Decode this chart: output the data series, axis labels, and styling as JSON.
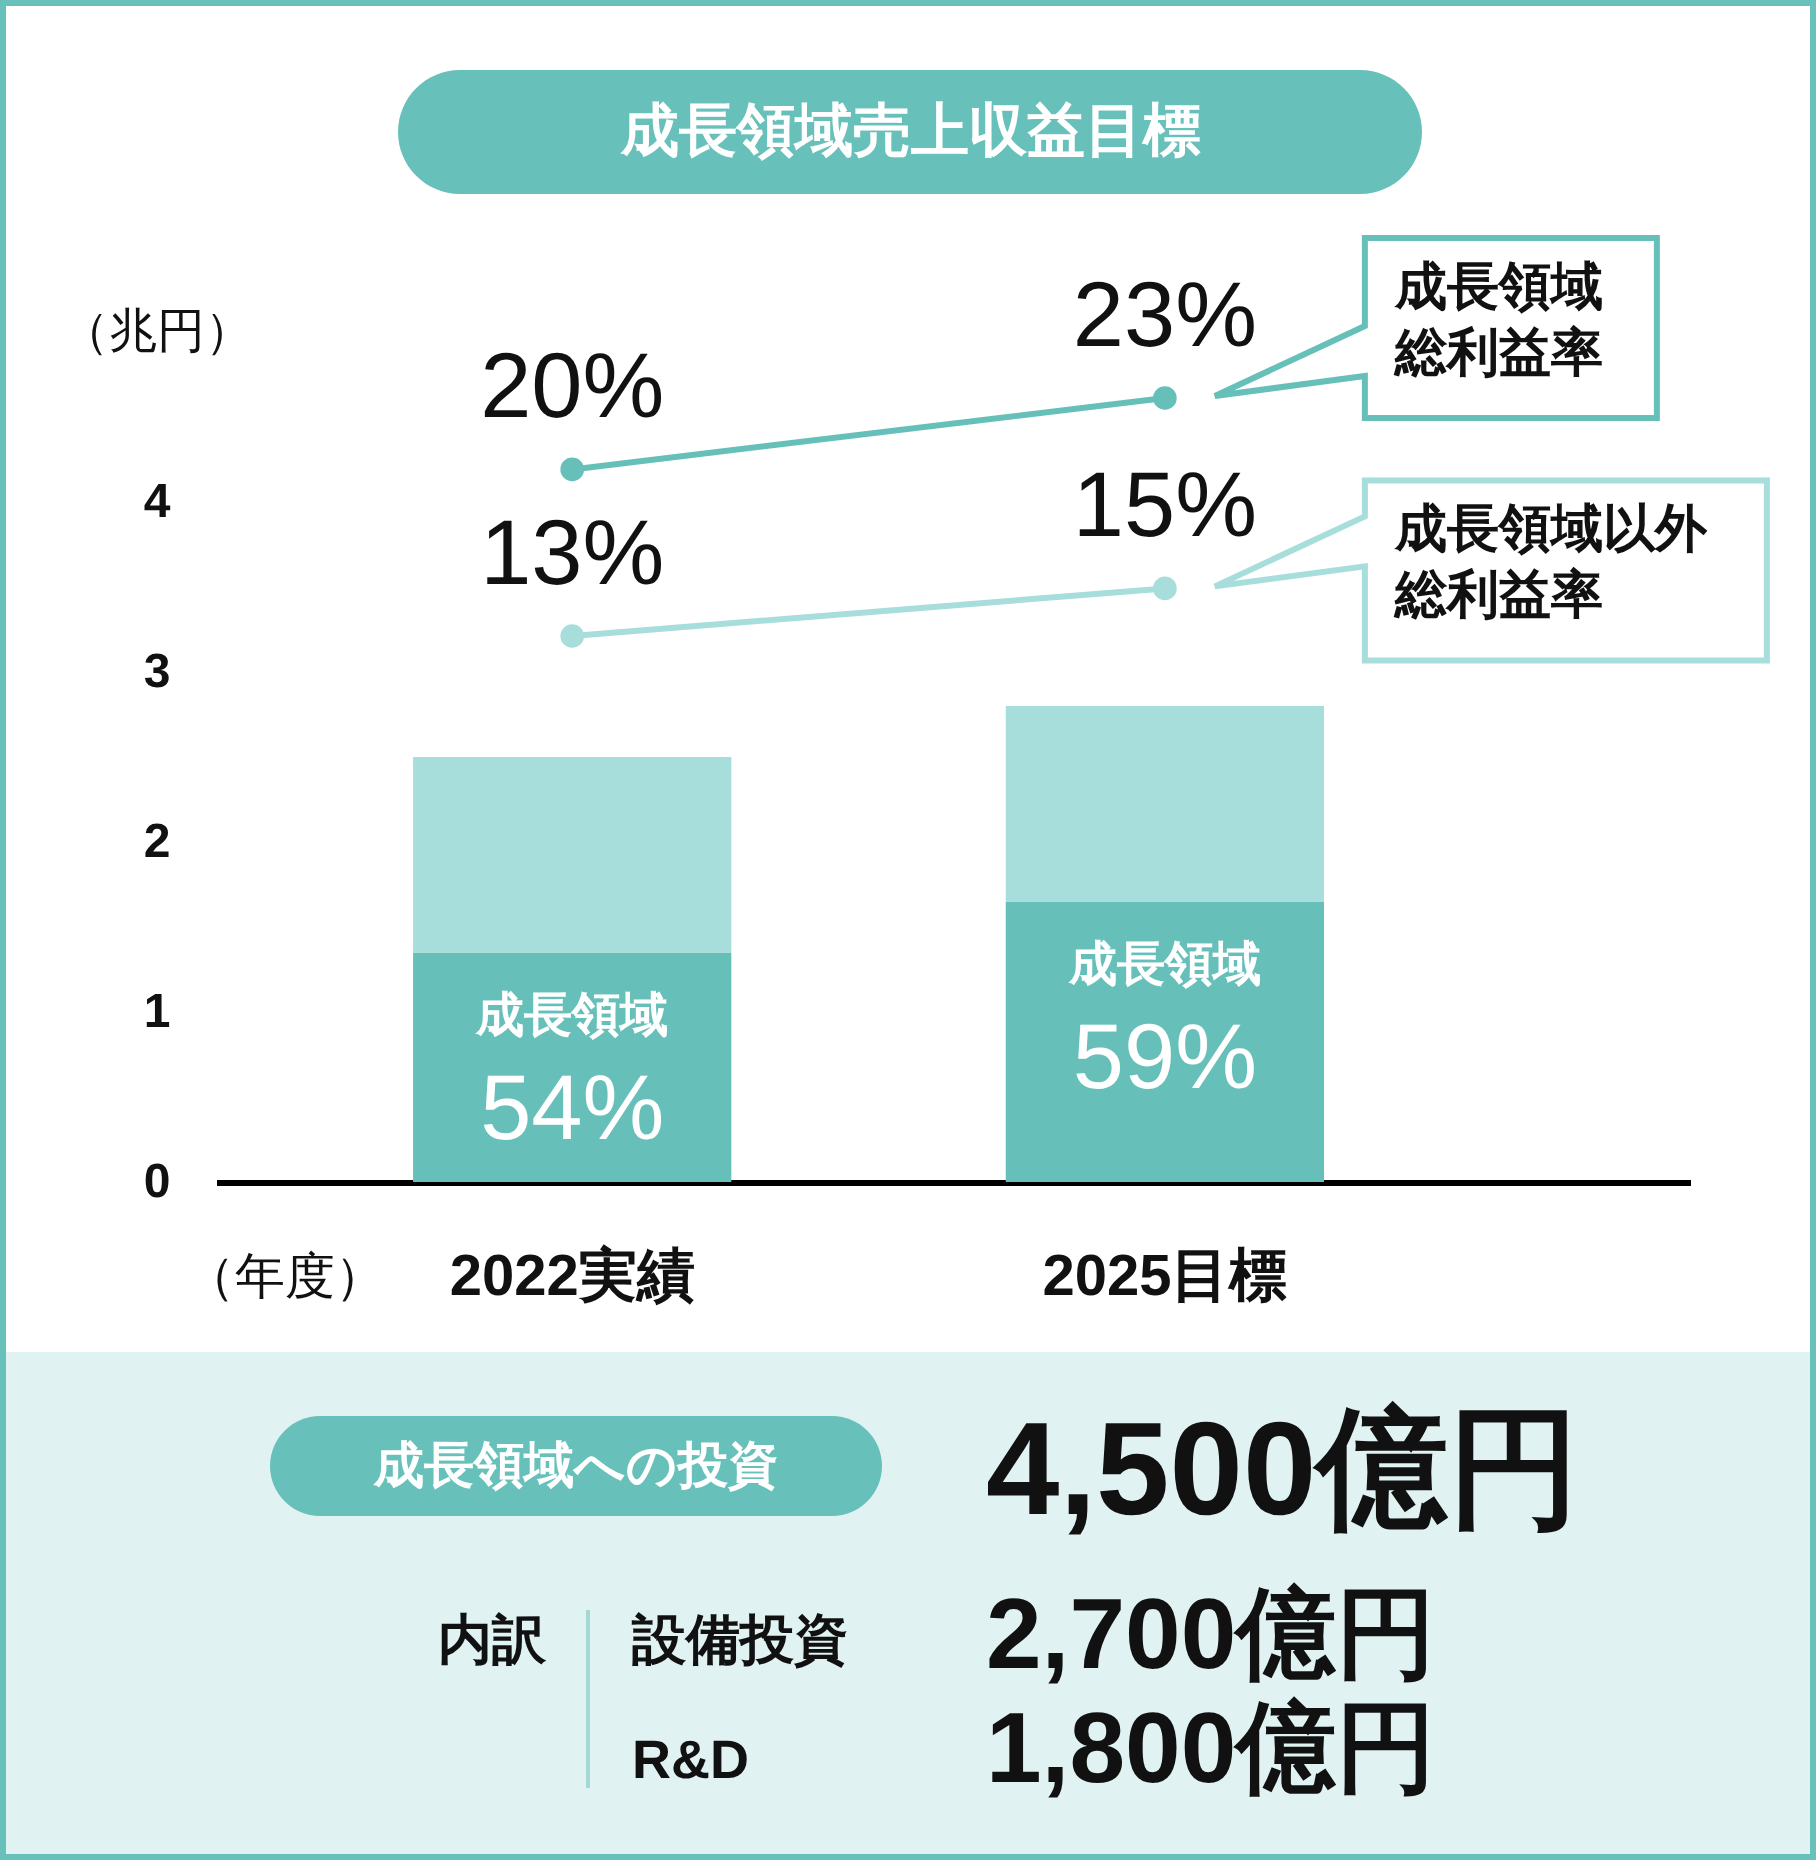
{
  "chart_data": [
    {
      "type": "bar",
      "title": "成長領域売上収益目標",
      "xlabel": "（年度）",
      "categories": [
        "2022実績",
        "2025目標"
      ],
      "stacked": true,
      "series": [
        {
          "name": "成長領域",
          "color": "#66c0b9",
          "values": [
            1.35,
            1.65
          ]
        },
        {
          "color": "#a7dedb",
          "values": [
            1.15,
            1.15
          ]
        },
        {
          "type": "line",
          "axis": "y2",
          "name": "成長領域総利益率",
          "color": "#66c0b9",
          "values": [
            20,
            23
          ],
          "value_labels": [
            "20%",
            "23%"
          ]
        },
        {
          "type": "line",
          "axis": "y2",
          "name": "成長領域以外総利益率",
          "color": "#a7dedb",
          "values": [
            13,
            15
          ],
          "value_labels": [
            "13%",
            "15%"
          ]
        }
      ],
      "annotations": [
        {
          "text": "54%",
          "x": "2022実績",
          "y": 1.35
        },
        {
          "text": "59%",
          "x": "2025目標",
          "y": 1.65
        }
      ],
      "ylim": [
        0,
        5
      ],
      "yticks": [
        0,
        1,
        2,
        3,
        4,
        {
          "value": 5,
          "label": "（兆円）"
        }
      ],
      "marker": "circle",
      "grid": false,
      "legend": false
    },
    {
      "type": "other",
      "title": "成長領域への投資",
      "annotations": [
        "4,500億円",
        "内訳",
        "設備投資",
        "2,700億円",
        "R&D",
        "1,800億円"
      ]
    }
  ]
}
